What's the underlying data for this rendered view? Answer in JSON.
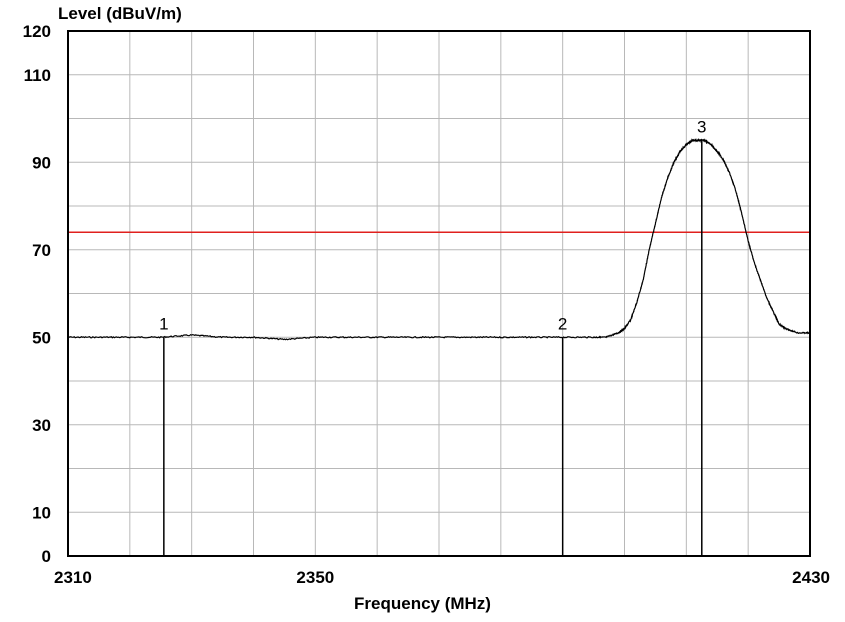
{
  "chart_data": {
    "type": "line",
    "title": "",
    "ylabel": "Level (dBuV/m)",
    "xlabel": "Frequency (MHz)",
    "xlim": [
      2310,
      2430
    ],
    "ylim": [
      0,
      120
    ],
    "grid": true,
    "x_ticks": [
      "2310",
      "2350",
      "2430"
    ],
    "y_ticks": [
      "120",
      "110",
      "90",
      "70",
      "50",
      "30",
      "10",
      "0"
    ],
    "y_tick_values": [
      120,
      110,
      90,
      70,
      50,
      30,
      10,
      0
    ],
    "limit_line": {
      "y": 74,
      "color": "#e0201e"
    },
    "series": [
      {
        "name": "",
        "color": "#000000",
        "x": [
          2310,
          2315,
          2320,
          2325,
          2330,
          2335,
          2340,
          2345,
          2350,
          2355,
          2360,
          2365,
          2370,
          2375,
          2380,
          2385,
          2390,
          2395,
          2397,
          2399,
          2400,
          2401,
          2402,
          2403,
          2404,
          2405,
          2406,
          2407,
          2408,
          2409,
          2410,
          2411,
          2412,
          2413,
          2414,
          2415,
          2416,
          2417,
          2418,
          2419,
          2420,
          2421,
          2422,
          2423,
          2424,
          2425,
          2426,
          2428,
          2430
        ],
        "y": [
          50,
          50,
          50,
          50,
          50.5,
          50,
          50,
          49.5,
          50,
          50,
          50,
          50,
          50,
          50,
          50,
          50,
          50,
          50,
          50,
          51,
          52,
          54,
          58,
          63,
          70,
          76,
          82,
          86.5,
          90,
          92.5,
          94,
          95,
          95,
          95,
          94,
          92.5,
          90.5,
          87.5,
          83.5,
          78,
          72,
          67,
          63,
          59,
          56,
          53,
          52,
          51,
          51
        ]
      }
    ],
    "markers": [
      {
        "label": "1",
        "x": 2325.5,
        "y": 50
      },
      {
        "label": "2",
        "x": 2390,
        "y": 50
      },
      {
        "label": "3",
        "x": 2412.5,
        "y": 95
      }
    ]
  }
}
